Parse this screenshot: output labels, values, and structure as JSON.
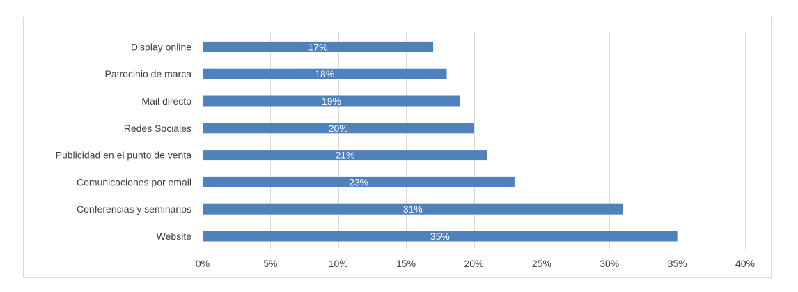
{
  "chart_data": {
    "type": "bar",
    "orientation": "horizontal",
    "categories": [
      "Display online",
      "Patrocinio de marca",
      "Mail directo",
      "Redes Sociales",
      "Publicidad en el punto de venta",
      "Comunicaciones por email",
      "Conferencias y seminarios",
      "Website"
    ],
    "values": [
      17,
      18,
      19,
      20,
      21,
      23,
      31,
      35
    ],
    "data_labels": [
      "17%",
      "18%",
      "19%",
      "20%",
      "21%",
      "23%",
      "31%",
      "35%"
    ],
    "xlim": [
      0,
      40
    ],
    "x_ticks": [
      0,
      5,
      10,
      15,
      20,
      25,
      30,
      35,
      40
    ],
    "x_tick_labels": [
      "0%",
      "5%",
      "10%",
      "15%",
      "20%",
      "25%",
      "30%",
      "35%",
      "40%"
    ],
    "title": "",
    "xlabel": "",
    "ylabel": "",
    "grid": "vertical",
    "bar_color": "#4f81bd",
    "grid_color": "#d9d9d9"
  }
}
